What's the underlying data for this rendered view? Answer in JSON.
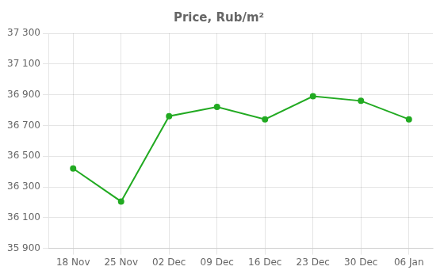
{
  "chart_data": {
    "type": "line",
    "title": "Price, Rub/m²",
    "categories": [
      "18 Nov",
      "25 Nov",
      "02 Dec",
      "09 Dec",
      "16 Dec",
      "23 Dec",
      "30 Dec",
      "06 Jan"
    ],
    "values": [
      36420,
      36205,
      36760,
      36820,
      36740,
      36890,
      36860,
      36740
    ],
    "color": "#22aa22",
    "marker": "circle",
    "ylim": [
      35900,
      37300
    ],
    "yticks": [
      {
        "value": 35900,
        "label": "35 900"
      },
      {
        "value": 36100,
        "label": "36 100"
      },
      {
        "value": 36300,
        "label": "36 300"
      },
      {
        "value": 36500,
        "label": "36 500"
      },
      {
        "value": 36700,
        "label": "36 700"
      },
      {
        "value": 36900,
        "label": "36 900"
      },
      {
        "value": 37100,
        "label": "37 100"
      },
      {
        "value": 37300,
        "label": "37 300"
      }
    ],
    "grid": true
  }
}
